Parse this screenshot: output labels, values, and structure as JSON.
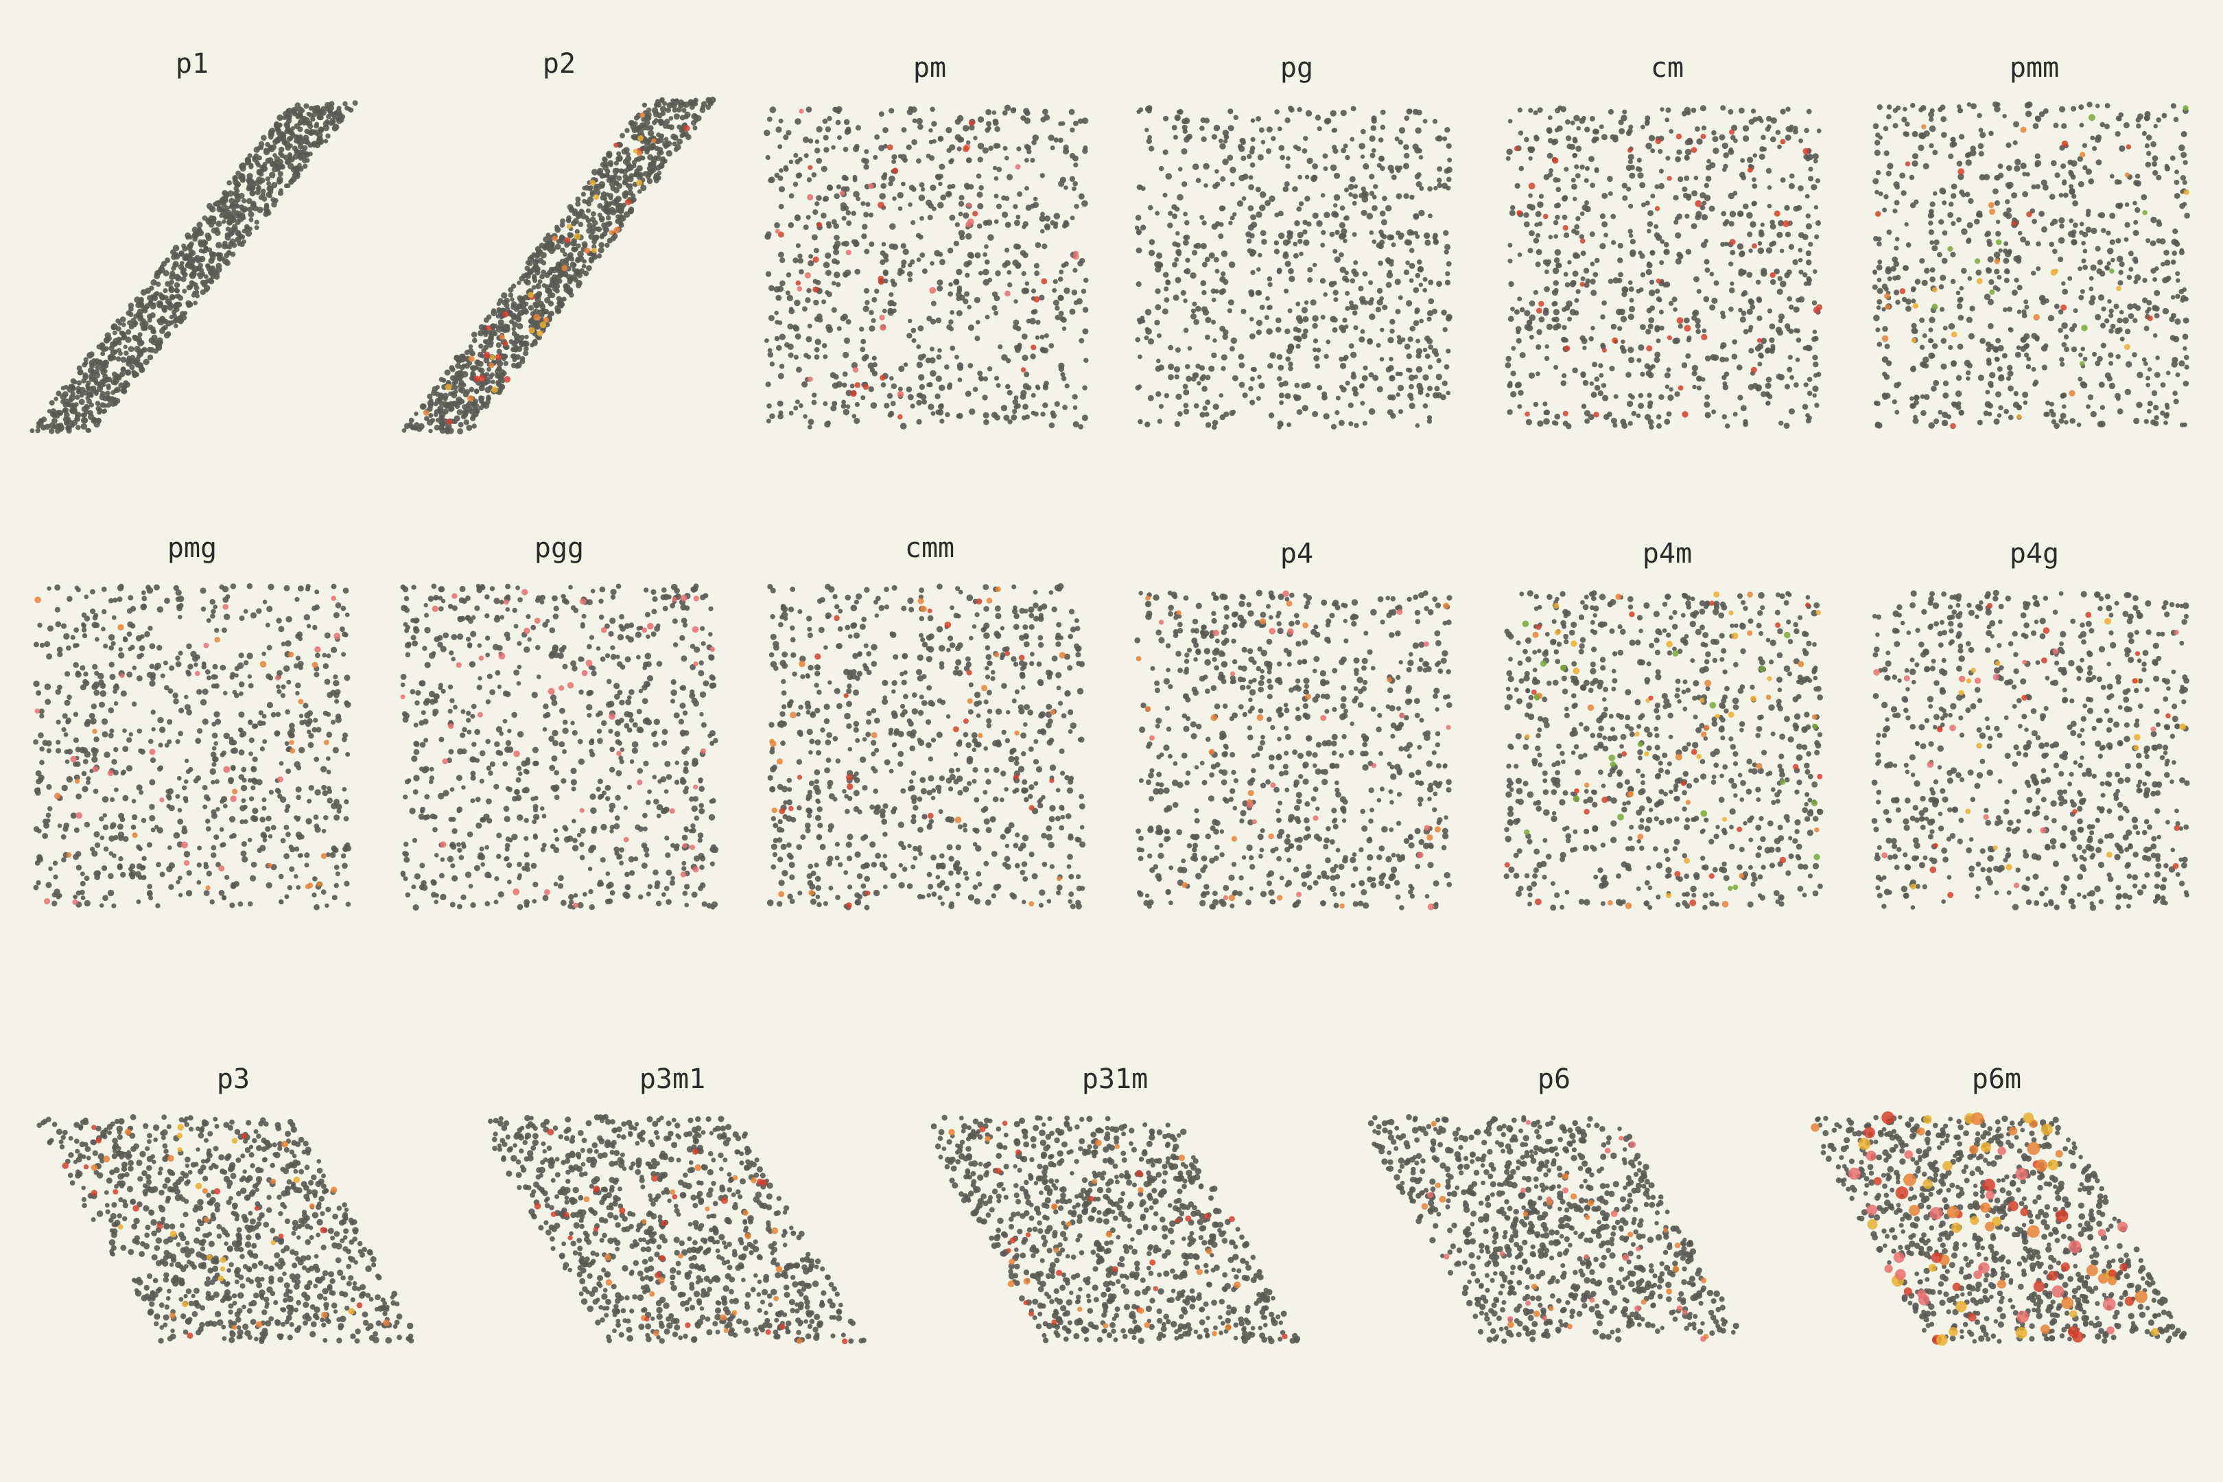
{
  "panels": [
    {
      "id": "p1",
      "title": "p1",
      "lattice": "oblique",
      "accents": []
    },
    {
      "id": "p2",
      "title": "p2",
      "lattice": "oblique",
      "accents": [
        "#e8833a",
        "#d6402e",
        "#e8b030"
      ]
    },
    {
      "id": "pm",
      "title": "pm",
      "lattice": "rectangular",
      "accents": [
        "#d6402e",
        "#e87070"
      ]
    },
    {
      "id": "pg",
      "title": "pg",
      "lattice": "rectangular",
      "accents": []
    },
    {
      "id": "cm",
      "title": "cm",
      "lattice": "rectangular",
      "accents": [
        "#d6402e"
      ]
    },
    {
      "id": "pmm",
      "title": "pmm",
      "lattice": "rectangular",
      "accents": [
        "#e8833a",
        "#e8b030",
        "#7aa83a",
        "#d6402e"
      ]
    },
    {
      "id": "pmg",
      "title": "pmg",
      "lattice": "rectangular",
      "accents": [
        "#e87070",
        "#e8833a"
      ]
    },
    {
      "id": "pgg",
      "title": "pgg",
      "lattice": "rectangular",
      "accents": [
        "#e87070"
      ]
    },
    {
      "id": "cmm",
      "title": "cmm",
      "lattice": "rectangular",
      "accents": [
        "#e8833a",
        "#d6402e"
      ]
    },
    {
      "id": "p4",
      "title": "p4",
      "lattice": "square",
      "accents": [
        "#e8833a",
        "#e87070"
      ]
    },
    {
      "id": "p4m",
      "title": "p4m",
      "lattice": "square",
      "accents": [
        "#e8833a",
        "#e8b030",
        "#d6402e",
        "#7aa83a"
      ]
    },
    {
      "id": "p4g",
      "title": "p4g",
      "lattice": "square",
      "accents": [
        "#d6402e",
        "#e87070",
        "#e8b030"
      ]
    },
    {
      "id": "p3",
      "title": "p3",
      "lattice": "hexagonal",
      "accents": [
        "#e8833a",
        "#d6402e",
        "#e8b030"
      ]
    },
    {
      "id": "p3m1",
      "title": "p3m1",
      "lattice": "hexagonal",
      "accents": [
        "#e8833a",
        "#d6402e"
      ]
    },
    {
      "id": "p31m",
      "title": "p31m",
      "lattice": "hexagonal",
      "accents": [
        "#e8833a",
        "#d6402e"
      ]
    },
    {
      "id": "p6",
      "title": "p6",
      "lattice": "hexagonal",
      "accents": [
        "#e8833a",
        "#e87070"
      ]
    },
    {
      "id": "p6m",
      "title": "p6m",
      "lattice": "hexagonal",
      "accents": [
        "#d6402e",
        "#e8833a",
        "#e8b030",
        "#e87070"
      ]
    }
  ],
  "colors": {
    "background": "#f4f3e8",
    "point": "#5a5a55",
    "title": "#2b2b2b"
  }
}
